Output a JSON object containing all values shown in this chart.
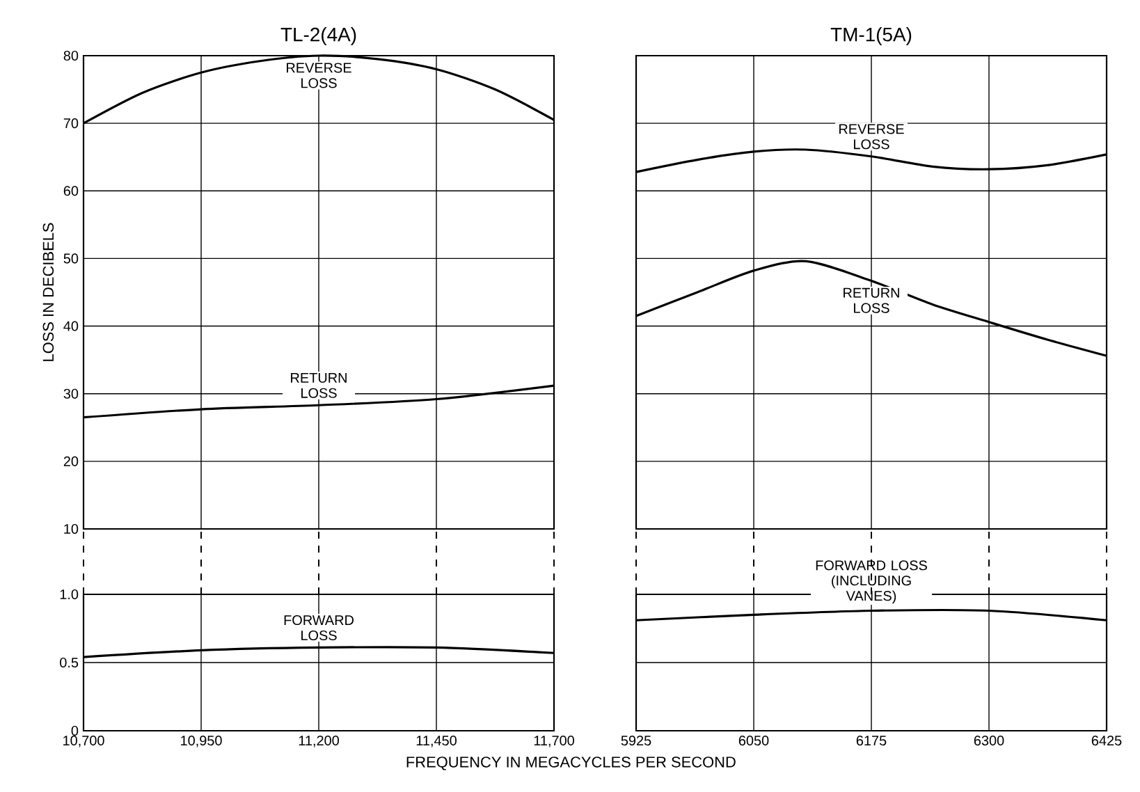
{
  "chart_data": [
    {
      "type": "line",
      "title": "TL-2(4A)",
      "ylabel": "LOSS IN DECIBELS",
      "xlim": [
        10700,
        11700
      ],
      "xticks": [
        10700,
        10950,
        11200,
        11450,
        11700
      ],
      "ylim": [
        10,
        80
      ],
      "yticks": [
        10,
        20,
        30,
        40,
        50,
        60,
        70,
        80
      ],
      "grid": true,
      "tick_labels": "y",
      "series": [
        {
          "name": "REVERSE LOSS",
          "color": "#000000",
          "x": [
            10700,
            10825,
            10950,
            11075,
            11200,
            11325,
            11450,
            11575,
            11700
          ],
          "values": [
            70,
            74.5,
            77.5,
            79.2,
            80,
            79.5,
            78,
            75,
            70.5
          ]
        },
        {
          "name": "RETURN LOSS",
          "color": "#000000",
          "x": [
            10700,
            10950,
            11200,
            11450,
            11700
          ],
          "values": [
            26.5,
            27.7,
            28.3,
            29.2,
            31.2
          ]
        }
      ]
    },
    {
      "type": "line",
      "title": "TM-1(5A)",
      "xlim": [
        5925,
        6425
      ],
      "xticks": [
        5925,
        6050,
        6175,
        6300,
        6425
      ],
      "ylim": [
        10,
        80
      ],
      "yticks": [
        10,
        20,
        30,
        40,
        50,
        60,
        70,
        80
      ],
      "grid": true,
      "tick_labels": false,
      "series": [
        {
          "name": "REVERSE LOSS",
          "color": "#000000",
          "x": [
            5925,
            5990,
            6050,
            6105,
            6175,
            6240,
            6300,
            6362,
            6425
          ],
          "values": [
            62.8,
            64.6,
            65.8,
            66.1,
            65.1,
            63.6,
            63.2,
            63.8,
            65.4
          ]
        },
        {
          "name": "RETURN LOSS",
          "color": "#000000",
          "x": [
            5925,
            5990,
            6050,
            6106,
            6175,
            6240,
            6300,
            6362,
            6425
          ],
          "values": [
            41.5,
            45,
            48.2,
            49.6,
            46.7,
            43.2,
            40.6,
            38,
            35.6
          ]
        }
      ]
    },
    {
      "type": "line",
      "xlabel": "FREQUENCY IN MEGACYCLES PER SECOND",
      "xlim": [
        10700,
        11700
      ],
      "xticks": [
        {
          "value": 10700,
          "label": "10,700"
        },
        {
          "value": 10950,
          "label": "10,950"
        },
        {
          "value": 11200,
          "label": "11,200"
        },
        {
          "value": 11450,
          "label": "11,450"
        },
        {
          "value": 11700,
          "label": "11,700"
        }
      ],
      "ylim": [
        0,
        1
      ],
      "yticks": [
        0,
        0.5,
        {
          "value": 1,
          "label": "1.0"
        }
      ],
      "grid": true,
      "series": [
        {
          "name": "FORWARD LOSS",
          "color": "#000000",
          "x": [
            10700,
            10950,
            11200,
            11450,
            11700
          ],
          "values": [
            0.54,
            0.59,
            0.61,
            0.61,
            0.57
          ]
        }
      ]
    },
    {
      "type": "line",
      "xlim": [
        5925,
        6425
      ],
      "xticks": [
        5925,
        6050,
        6175,
        6300,
        6425
      ],
      "ylim": [
        0,
        1
      ],
      "yticks": [
        0,
        0.5,
        1
      ],
      "grid": true,
      "tick_labels": "x",
      "series": [
        {
          "name": "FORWARD LOSS (INCLUDING VANES)",
          "color": "#000000",
          "x": [
            5925,
            6050,
            6175,
            6300,
            6425
          ],
          "values": [
            0.81,
            0.85,
            0.88,
            0.88,
            0.81
          ]
        }
      ]
    }
  ]
}
